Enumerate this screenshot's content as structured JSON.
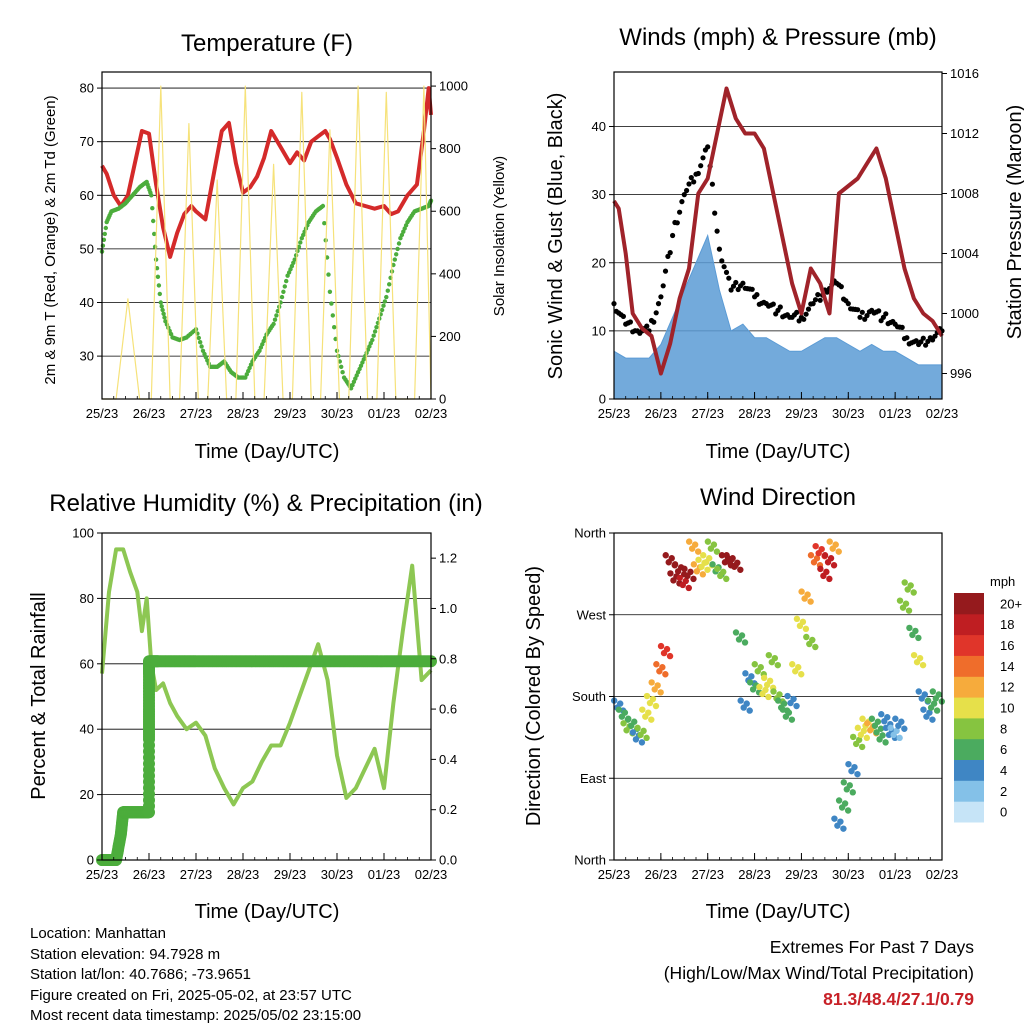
{
  "charts": {
    "temperature": {
      "title": "Temperature (F)",
      "ylabel": "2m & 9m T (Red, Orange) & 2m Td (Green)",
      "y2label": "Solar Insolation (Yellow)",
      "xlabel": "Time (Day/UTC)"
    },
    "winds": {
      "title": "Winds (mph) & Pressure (mb)",
      "ylabel": "Sonic Wind & Gust (Blue, Black)",
      "y2label": "Station Pressure (Maroon)",
      "xlabel": "Time (Day/UTC)"
    },
    "humidity": {
      "title": "Relative Humidity (%) & Precipitation (in)",
      "ylabel": "Percent & Total Rainfall",
      "xlabel": "Time (Day/UTC)"
    },
    "direction": {
      "title": "Wind Direction",
      "ylabel": "Direction (Colored By Speed)",
      "xlabel": "Time (Day/UTC)",
      "legend_title": "mph"
    }
  },
  "chart_data": [
    {
      "id": "temperature",
      "type": "line",
      "title": "Temperature (F)",
      "xlabel": "Time (Day/UTC)",
      "ylabel": "2m & 9m T (Red, Orange) & 2m Td (Green)",
      "y2label": "Solar Insolation (Yellow)",
      "x_ticks": [
        "25/23",
        "26/23",
        "27/23",
        "28/23",
        "29/23",
        "30/23",
        "01/23",
        "02/23"
      ],
      "xlim": [
        0,
        7
      ],
      "ylim": [
        22,
        83
      ],
      "y_ticks": [
        30,
        40,
        50,
        60,
        70,
        80
      ],
      "y2lim": [
        0,
        1045
      ],
      "y2_ticks": [
        0,
        200,
        400,
        600,
        800,
        1000
      ],
      "grid": "horizontal",
      "colors": {
        "temperature": "#d42a2a",
        "dewpoint": "#4cad3c",
        "solar": "#f6e27a"
      },
      "series": [
        {
          "axis": "y",
          "style": "line",
          "color": "#d42a2a",
          "x": [
            0,
            0.1,
            0.25,
            0.4,
            0.55,
            0.7,
            0.85,
            1,
            1.15,
            1.3,
            1.45,
            1.6,
            1.75,
            1.9,
            2,
            2.2,
            2.4,
            2.55,
            2.7,
            2.85,
            3,
            3.15,
            3.3,
            3.45,
            3.6,
            3.8,
            4,
            4.15,
            4.3,
            4.45,
            4.6,
            4.75,
            4.85,
            5,
            5.2,
            5.4,
            5.6,
            5.8,
            6,
            6.15,
            6.3,
            6.5,
            6.7,
            6.85,
            6.95,
            7
          ],
          "y": [
            65.5,
            64,
            60,
            58,
            60,
            66,
            72,
            71.5,
            62,
            54,
            48.5,
            53,
            56.5,
            58,
            57,
            55.5,
            65,
            72,
            73.5,
            66,
            60.5,
            61.5,
            63.5,
            67,
            72,
            69,
            66,
            68,
            66.5,
            70,
            71,
            72,
            70.5,
            67,
            62,
            58.5,
            58,
            57.5,
            58,
            56.5,
            57,
            60,
            62,
            72,
            80,
            75
          ]
        },
        {
          "axis": "y",
          "style": "dots",
          "color": "#4cad3c",
          "x": [
            0,
            0.1,
            0.2,
            0.35,
            0.5,
            0.65,
            0.8,
            0.95,
            1.05,
            1.15,
            1.25,
            1.35,
            1.5,
            1.65,
            1.8,
            2,
            2.15,
            2.3,
            2.45,
            2.6,
            2.75,
            2.9,
            3.05,
            3.2,
            3.35,
            3.5,
            3.65,
            3.8,
            3.95,
            4.1,
            4.25,
            4.4,
            4.55,
            4.7,
            4.85,
            5,
            5.15,
            5.3,
            5.45,
            5.6,
            5.75,
            5.9,
            6.05,
            6.2,
            6.35,
            6.5,
            6.65,
            6.8,
            6.95,
            7
          ],
          "y": [
            49.5,
            55,
            57,
            57.5,
            58.5,
            60,
            61.5,
            62.5,
            60,
            48,
            40,
            36.5,
            33.5,
            33,
            33.5,
            35,
            31,
            28,
            28,
            29,
            27,
            26,
            26,
            29,
            31,
            34,
            36,
            40,
            45,
            48,
            52,
            55,
            57,
            58,
            42,
            31,
            26,
            24,
            27,
            30,
            33,
            37,
            41,
            47,
            52,
            55,
            57,
            57.5,
            58,
            59
          ]
        },
        {
          "axis": "y2",
          "style": "line",
          "color": "#f6e27a",
          "x": [
            0,
            0.3,
            0.55,
            0.8,
            0.95,
            1.05,
            1.25,
            1.45,
            1.65,
            1.85,
            2.05,
            2.25,
            2.45,
            2.65,
            2.85,
            3.05,
            3.25,
            3.45,
            3.65,
            3.85,
            4.05,
            4.25,
            4.45,
            4.65,
            4.85,
            5.05,
            5.25,
            5.45,
            5.65,
            5.85,
            6.05,
            6.25,
            6.45,
            6.65,
            6.85,
            7
          ],
          "y": [
            0,
            0,
            320,
            0,
            0,
            0,
            1000,
            0,
            0,
            880,
            0,
            0,
            700,
            0,
            0,
            1000,
            0,
            0,
            750,
            0,
            0,
            980,
            0,
            0,
            860,
            0,
            0,
            1000,
            0,
            0,
            980,
            0,
            0,
            0,
            1000,
            0
          ]
        }
      ]
    },
    {
      "id": "winds",
      "type": "line",
      "title": "Winds (mph) & Pressure (mb)",
      "xlabel": "Time (Day/UTC)",
      "ylabel": "Sonic Wind & Gust (Blue, Black)",
      "y2label": "Station Pressure (Maroon)",
      "x_ticks": [
        "25/23",
        "26/23",
        "27/23",
        "28/23",
        "29/23",
        "30/23",
        "01/23",
        "02/23"
      ],
      "xlim": [
        0,
        7
      ],
      "ylim": [
        0,
        48
      ],
      "y_ticks": [
        0,
        10,
        20,
        30,
        40
      ],
      "y2lim": [
        994.3,
        1016.1
      ],
      "y2_ticks": [
        996,
        1000,
        1004,
        1008,
        1012,
        1016
      ],
      "grid": "horizontal",
      "colors": {
        "wind": "#5b9bd5",
        "gust": "#000000",
        "pressure": "#a0232a"
      },
      "series": [
        {
          "axis": "y",
          "style": "area",
          "color": "#5b9bd5",
          "x": [
            0,
            0.25,
            0.5,
            0.75,
            1,
            1.25,
            1.5,
            1.75,
            2,
            2.25,
            2.5,
            2.75,
            3,
            3.25,
            3.5,
            3.75,
            4,
            4.25,
            4.5,
            4.75,
            5,
            5.25,
            5.5,
            5.75,
            6,
            6.25,
            6.5,
            6.75,
            7
          ],
          "y": [
            7,
            6,
            6,
            6,
            8,
            12,
            16,
            20,
            24,
            16,
            10,
            11,
            9,
            9,
            8,
            7,
            7,
            8,
            9,
            9,
            8,
            7,
            8,
            7,
            7,
            6,
            5,
            5,
            5
          ]
        },
        {
          "axis": "y",
          "style": "dots",
          "color": "#000000",
          "x": [
            0,
            0.25,
            0.5,
            0.75,
            1,
            1.25,
            1.5,
            1.75,
            2,
            2.25,
            2.5,
            2.75,
            3,
            3.25,
            3.5,
            3.75,
            4,
            4.25,
            4.5,
            4.75,
            5,
            5.25,
            5.5,
            5.75,
            6,
            6.25,
            6.5,
            6.75,
            7
          ],
          "y": [
            14,
            11,
            10,
            10,
            15,
            24,
            30,
            33,
            37,
            22,
            16,
            17,
            15,
            14,
            13,
            12,
            12,
            14,
            16,
            17,
            14,
            12,
            13,
            12,
            11,
            9,
            8,
            9,
            10
          ]
        },
        {
          "axis": "y2",
          "style": "line",
          "color": "#a0232a",
          "x": [
            0,
            0.1,
            0.25,
            0.4,
            0.6,
            0.8,
            1,
            1.2,
            1.4,
            1.6,
            1.8,
            2,
            2.2,
            2.4,
            2.6,
            2.8,
            3,
            3.2,
            3.4,
            3.6,
            3.8,
            4,
            4.2,
            4.4,
            4.6,
            4.8,
            5,
            5.2,
            5.4,
            5.6,
            5.8,
            6,
            6.2,
            6.4,
            6.6,
            6.8,
            7
          ],
          "y": [
            1007.5,
            1007,
            1004,
            1000,
            999,
            998.5,
            996,
            998,
            1001,
            1003,
            1008,
            1009,
            1012,
            1015,
            1013,
            1012,
            1012,
            1011,
            1008,
            1005,
            1002,
            1000,
            1003,
            1002,
            1000,
            1008,
            1008.5,
            1009,
            1010,
            1011,
            1009,
            1006,
            1003,
            1001,
            1000,
            999.5,
            998.5
          ]
        }
      ]
    },
    {
      "id": "humidity",
      "type": "line",
      "title": "Relative Humidity (%) & Precipitation (in)",
      "xlabel": "Time (Day/UTC)",
      "ylabel": "Percent & Total Rainfall",
      "x_ticks": [
        "25/23",
        "26/23",
        "27/23",
        "28/23",
        "29/23",
        "30/23",
        "01/23",
        "02/23"
      ],
      "xlim": [
        0,
        7
      ],
      "ylim": [
        0,
        100
      ],
      "y_ticks": [
        0,
        20,
        40,
        60,
        80,
        100
      ],
      "y2lim": [
        0,
        1.3
      ],
      "y2_ticks": [
        "0.0",
        "0.2",
        "0.4",
        "0.6",
        "0.8",
        "1.0",
        "1.2"
      ],
      "grid": "horizontal",
      "colors": {
        "rh": "#8dc753",
        "precip": "#4cad3c"
      },
      "series": [
        {
          "axis": "y",
          "style": "line",
          "color": "#8dc753",
          "x": [
            0,
            0.15,
            0.3,
            0.45,
            0.6,
            0.75,
            0.85,
            0.95,
            1.05,
            1.15,
            1.3,
            1.45,
            1.6,
            1.8,
            2,
            2.2,
            2.4,
            2.6,
            2.8,
            3,
            3.2,
            3.4,
            3.6,
            3.8,
            4,
            4.2,
            4.4,
            4.6,
            4.8,
            5,
            5.2,
            5.4,
            5.6,
            5.8,
            6,
            6.2,
            6.4,
            6.6,
            6.8,
            7
          ],
          "y": [
            57,
            82,
            95,
            95,
            88,
            82,
            70,
            80,
            60,
            52,
            54,
            48,
            44,
            40,
            42,
            38,
            28,
            22,
            17,
            22,
            24,
            30,
            35,
            35,
            42,
            50,
            58,
            66,
            55,
            32,
            19,
            22,
            28,
            34,
            22,
            48,
            70,
            90,
            55,
            58
          ]
        },
        {
          "axis": "y2",
          "style": "dots",
          "color": "#4cad3c",
          "x": [
            0,
            0.1,
            0.2,
            0.3,
            0.4,
            0.45,
            0.5,
            0.6,
            0.7,
            0.8,
            0.9,
            1.0,
            1.0,
            1.0,
            1.0,
            1.0,
            1.2,
            1.6,
            2,
            2.5,
            3,
            3.5,
            4,
            4.5,
            5,
            5.5,
            6,
            6.5,
            7
          ],
          "y": [
            0,
            0,
            0,
            0,
            0.1,
            0.19,
            0.19,
            0.19,
            0.19,
            0.19,
            0.19,
            0.19,
            0.48,
            0.6,
            0.74,
            0.79,
            0.79,
            0.79,
            0.79,
            0.79,
            0.79,
            0.79,
            0.79,
            0.79,
            0.79,
            0.79,
            0.79,
            0.79,
            0.79
          ]
        }
      ]
    },
    {
      "id": "direction",
      "type": "scatter",
      "title": "Wind Direction",
      "xlabel": "Time (Day/UTC)",
      "ylabel": "Direction (Colored By Speed)",
      "x_ticks": [
        "25/23",
        "26/23",
        "27/23",
        "28/23",
        "29/23",
        "30/23",
        "01/23",
        "02/23"
      ],
      "xlim": [
        0,
        7
      ],
      "ylim": [
        0,
        360
      ],
      "y_ticks": [
        "North",
        "East",
        "South",
        "West",
        "North"
      ],
      "grid": "horizontal",
      "legend": {
        "title": "mph",
        "placement": "right",
        "labels": [
          "0",
          "2",
          "4",
          "6",
          "8",
          "10",
          "12",
          "14",
          "16",
          "18",
          "20+"
        ],
        "colors": [
          "#c6e4f7",
          "#84c1e8",
          "#3f86c4",
          "#4bab5f",
          "#86c440",
          "#e6e04a",
          "#f6ab3c",
          "#ef6d2b",
          "#e0352a",
          "#bf1e22",
          "#951a1d"
        ]
      },
      "series": [
        {
          "name": "direction",
          "x": [
            0.1,
            0.2,
            0.3,
            0.4,
            0.5,
            0.6,
            0.7,
            0.8,
            0.9,
            1.0,
            1.1,
            1.2,
            1.3,
            1.4,
            1.5,
            1.6,
            1.7,
            1.8,
            1.9,
            2.0,
            2.1,
            2.2,
            2.3,
            2.4,
            2.5,
            2.6,
            2.7,
            2.8,
            2.9,
            3.0,
            3.1,
            3.2,
            3.3,
            3.4,
            3.5,
            3.6,
            3.7,
            3.8,
            3.9,
            4.0,
            4.1,
            4.2,
            4.3,
            4.4,
            4.5,
            4.6,
            4.7,
            4.8,
            4.9,
            5.0,
            5.1,
            5.2,
            5.3,
            5.4,
            5.5,
            5.6,
            5.7,
            5.8,
            5.9,
            6.0,
            6.1,
            6.2,
            6.3,
            6.4,
            6.5,
            6.6,
            6.7,
            6.8,
            6.9
          ],
          "y": [
            170,
            160,
            145,
            150,
            135,
            140,
            160,
            175,
            190,
            210,
            230,
            330,
            310,
            320,
            305,
            315,
            345,
            320,
            325,
            330,
            345,
            320,
            315,
            330,
            330,
            325,
            245,
            170,
            200,
            190,
            210,
            185,
            195,
            220,
            180,
            170,
            160,
            175,
            210,
            260,
            290,
            240,
            330,
            340,
            315,
            330,
            345,
            40,
            60,
            80,
            100,
            130,
            140,
            150,
            145,
            150,
            135,
            155,
            140,
            140,
            150,
            280,
            300,
            250,
            220,
            180,
            160,
            170,
            180
          ],
          "speed": [
            3,
            5,
            8,
            6,
            4,
            7,
            9,
            10,
            12,
            14,
            16,
            20,
            22,
            21,
            18,
            19,
            12,
            11,
            10,
            9,
            8,
            6,
            7,
            20,
            22,
            21,
            5,
            4,
            3,
            6,
            8,
            9,
            10,
            8,
            7,
            5,
            6,
            4,
            9,
            10,
            12,
            8,
            13,
            16,
            17,
            18,
            12,
            4,
            5,
            6,
            3,
            8,
            9,
            10,
            11,
            6,
            5,
            4,
            3,
            2,
            3,
            8,
            7,
            6,
            9,
            4,
            3,
            5,
            6
          ]
        }
      ]
    }
  ],
  "info": {
    "location": "Location: Manhattan",
    "elevation": "Station elevation: 94.7928 m",
    "latlon": "Station lat/lon: 40.7686; -73.9651",
    "created": "Figure created on Fri, 2025-05-02, at 23:57 UTC",
    "timestamp": "Most recent data timestamp: 2025/05/02 23:15:00"
  },
  "extremes": {
    "title": "Extremes For Past 7 Days",
    "subtitle": "(High/Low/Max Wind/Total Precipitation)",
    "values": "81.3/48.4/27.1/0.79"
  }
}
